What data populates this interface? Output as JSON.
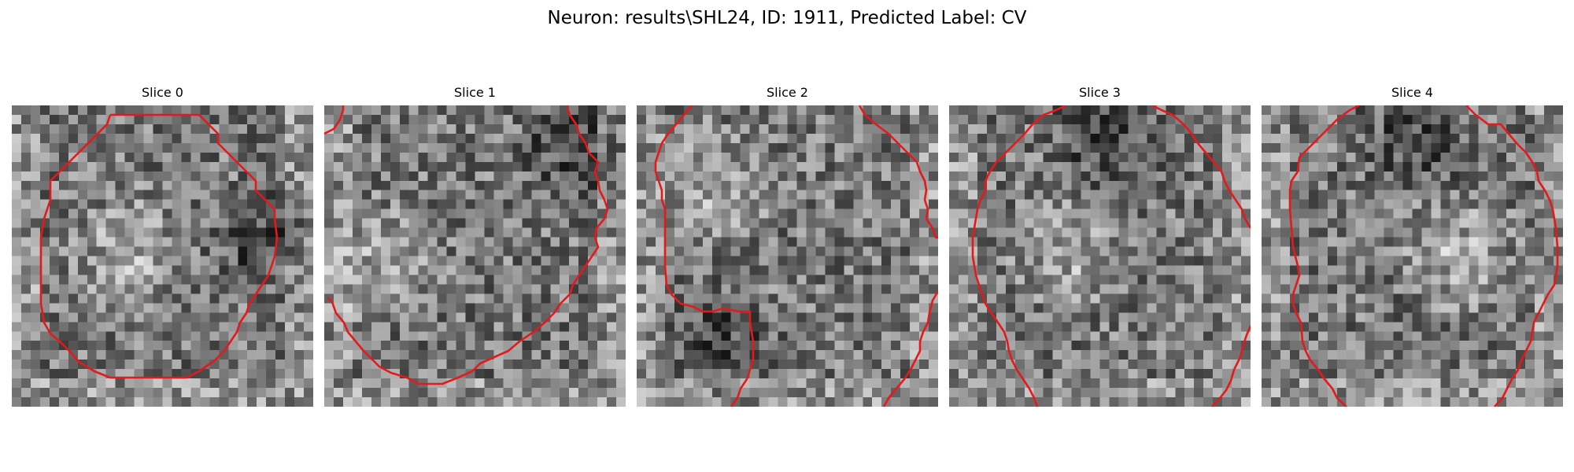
{
  "figure": {
    "title": "Neuron: results\\SHL24, ID: 1911, Predicted Label: CV",
    "contour_color": "#e31a1c",
    "colormap": "gray"
  },
  "panels": [
    {
      "title": "Slice 0",
      "seed": 11,
      "bright_region": "center-left",
      "dark_region": "right"
    },
    {
      "title": "Slice 1",
      "seed": 23,
      "bright_region": "left",
      "dark_region": "upper-right"
    },
    {
      "title": "Slice 2",
      "seed": 37,
      "bright_region": "upper-left",
      "dark_region": "lower-left"
    },
    {
      "title": "Slice 3",
      "seed": 53,
      "bright_region": "center-left",
      "dark_region": "top"
    },
    {
      "title": "Slice 4",
      "seed": 71,
      "bright_region": "center-right",
      "dark_region": "top"
    }
  ]
}
